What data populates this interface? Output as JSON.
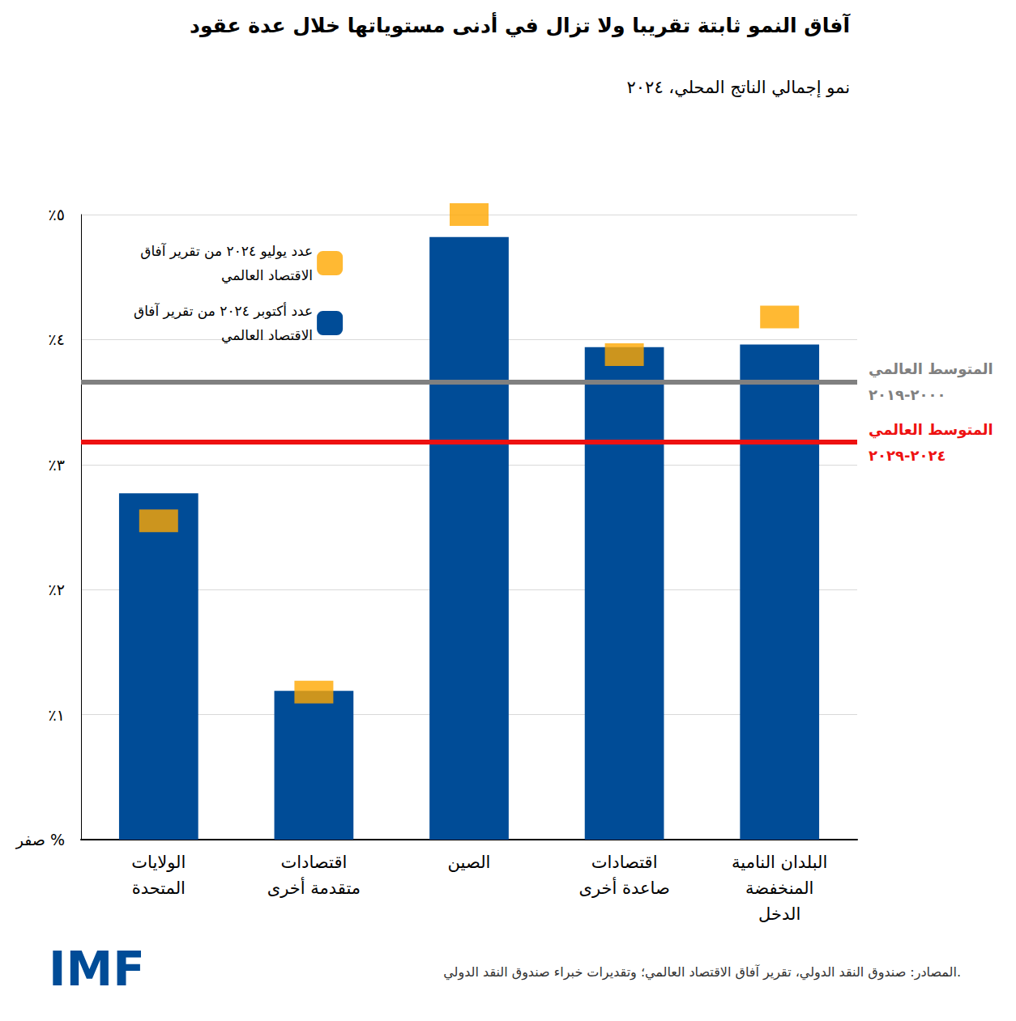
{
  "chart_data": {
    "type": "bar",
    "title": "آفاق النمو ثابتة تقريبا ولا تزال في أدنى مستوياتها خلال عدة عقود",
    "subtitle": "نمو إجمالي الناتج المحلي، ٢٠٢٤",
    "categories": [
      "الولايات\nالمتحدة",
      "اقتصادات\nمتقدمة أخرى",
      "الصين",
      "اقتصادات\nصاعدة أخرى",
      "البلدان النامية\nالمنخفضة\nالدخل"
    ],
    "series": [
      {
        "name": "عدد يوليو ٢٠٢٤ من تقرير آفاق الاقتصاد العالمي",
        "type": "scatter",
        "marker": "square",
        "color": "#FFA800",
        "values": [
          2.55,
          1.18,
          5.0,
          3.88,
          4.18
        ]
      },
      {
        "name": "عدد أكتوبر ٢٠٢٤ من تقرير آفاق الاقتصاد العالمي",
        "type": "bar",
        "color": "#004C97",
        "values": [
          2.77,
          1.19,
          4.82,
          3.94,
          3.96
        ]
      }
    ],
    "ylim": [
      0,
      5
    ],
    "yticks": [
      {
        "value": 0,
        "label": "صفر %"
      },
      {
        "value": 1,
        "label": "٪١"
      },
      {
        "value": 2,
        "label": "٪٢"
      },
      {
        "value": 3,
        "label": "٪٣"
      },
      {
        "value": 4,
        "label": "٪٤"
      },
      {
        "value": 5,
        "label": "٪٥"
      }
    ],
    "grid": true,
    "legend": "upper left",
    "reference_lines": [
      {
        "label": "المتوسط العالمي\n٢٠٠٠-٢٠١٩",
        "value": 3.66,
        "color": "#808080"
      },
      {
        "label": "المتوسط العالمي\n٢٠٢٤-٢٠٢٩",
        "value": 3.18,
        "color": "#EE1111"
      }
    ],
    "source": "المصادر: صندوق النقد الدولي، تقرير آفاق الاقتصاد العالمي؛ وتقديرات خبراء صندوق النقد الدولي.",
    "logo": "IMF"
  }
}
